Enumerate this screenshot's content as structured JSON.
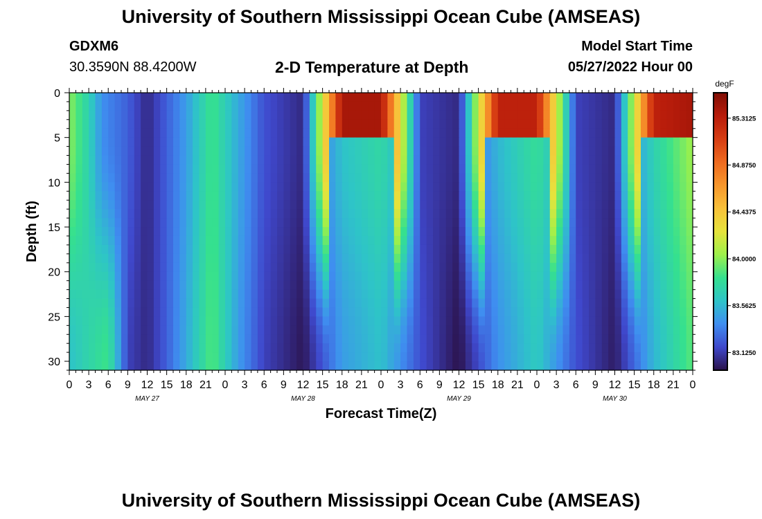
{
  "header": {
    "title": "University of Southern Mississippi Ocean Cube (AMSEAS)",
    "station_id": "GDXM6",
    "station_coords": "30.3590N  88.4200W",
    "plot_title": "2-D Temperature at Depth",
    "start_label": "Model Start Time",
    "start_value": "05/27/2022 Hour 00"
  },
  "footer": {
    "title": "University of Southern Mississippi Ocean Cube (AMSEAS)"
  },
  "chart_data": {
    "type": "heatmap",
    "title": "2-D Temperature at Depth",
    "xlabel": "Forecast Time(Z)",
    "ylabel": "Depth (ft)",
    "x_tick_labels": [
      "0",
      "3",
      "6",
      "9",
      "12",
      "15",
      "18",
      "21",
      "0",
      "3",
      "6",
      "9",
      "12",
      "15",
      "18",
      "21",
      "0",
      "3",
      "6",
      "9",
      "12",
      "15",
      "18",
      "21",
      "0",
      "3",
      "6",
      "9",
      "12",
      "15",
      "18",
      "21",
      "0"
    ],
    "x_day_labels": [
      "MAY 27",
      "MAY 28",
      "MAY 29",
      "MAY 30"
    ],
    "xlim_hours": [
      0,
      96
    ],
    "y_tick_labels": [
      "0",
      "5",
      "10",
      "15",
      "20",
      "25",
      "30"
    ],
    "ylim_ft": [
      0,
      31
    ],
    "y_inverted": true,
    "colorbar": {
      "unit": "degF",
      "min": 82.96,
      "max": 85.55,
      "ticks": [
        "85.3125",
        "84.8750",
        "84.4375",
        "84.0000",
        "83.5625",
        "83.1250"
      ],
      "colors": [
        "#2b124b",
        "#3f48cc",
        "#3f8ef0",
        "#2ec4c8",
        "#35e08f",
        "#9ef04a",
        "#e6e33c",
        "#f8c13a",
        "#f7962c",
        "#ee6a1f",
        "#d63d13",
        "#b81c0b",
        "#800e05"
      ]
    },
    "approx_columns_top_degF": [
      {
        "hour": 0,
        "value": 84.0
      },
      {
        "hour": 3,
        "value": 83.7
      },
      {
        "hour": 5,
        "value": 83.4
      },
      {
        "hour": 9,
        "value": 83.25
      },
      {
        "hour": 12,
        "value": 83.05
      },
      {
        "hour": 15,
        "value": 83.25
      },
      {
        "hour": 18,
        "value": 83.45
      },
      {
        "hour": 22,
        "value": 83.85
      },
      {
        "hour": 26,
        "value": 83.5
      },
      {
        "hour": 30,
        "value": 83.2
      },
      {
        "hour": 36,
        "value": 83.05
      },
      {
        "hour": 42,
        "value": 85.4
      },
      {
        "hour": 48,
        "value": 85.4
      },
      {
        "hour": 54,
        "value": 83.15
      },
      {
        "hour": 60,
        "value": 83.05
      },
      {
        "hour": 66,
        "value": 85.3
      },
      {
        "hour": 72,
        "value": 85.3
      },
      {
        "hour": 78,
        "value": 83.15
      },
      {
        "hour": 84,
        "value": 83.05
      },
      {
        "hour": 90,
        "value": 85.3
      },
      {
        "hour": 96,
        "value": 85.4
      }
    ],
    "approx_columns_bottom_degF": [
      {
        "hour": 0,
        "value": 83.6
      },
      {
        "hour": 6,
        "value": 83.85
      },
      {
        "hour": 9,
        "value": 83.15
      },
      {
        "hour": 12,
        "value": 83.05
      },
      {
        "hour": 15,
        "value": 83.25
      },
      {
        "hour": 18,
        "value": 83.5
      },
      {
        "hour": 22,
        "value": 83.9
      },
      {
        "hour": 26,
        "value": 83.45
      },
      {
        "hour": 30,
        "value": 83.15
      },
      {
        "hour": 36,
        "value": 82.98
      },
      {
        "hour": 42,
        "value": 83.45
      },
      {
        "hour": 48,
        "value": 83.6
      },
      {
        "hour": 54,
        "value": 83.2
      },
      {
        "hour": 60,
        "value": 82.96
      },
      {
        "hour": 66,
        "value": 83.4
      },
      {
        "hour": 72,
        "value": 83.65
      },
      {
        "hour": 78,
        "value": 83.2
      },
      {
        "hour": 84,
        "value": 83.0
      },
      {
        "hour": 90,
        "value": 83.55
      },
      {
        "hour": 96,
        "value": 83.9
      }
    ]
  }
}
